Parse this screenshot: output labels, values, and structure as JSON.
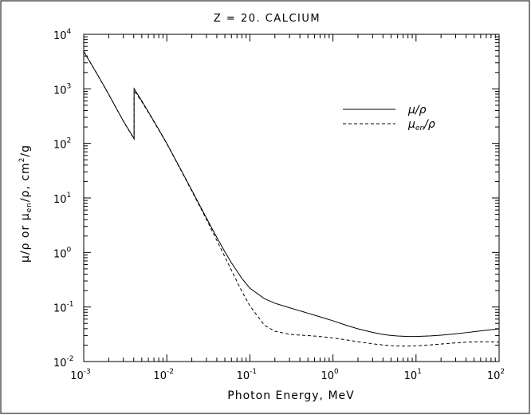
{
  "chart_data": {
    "type": "line",
    "title": "Z = 20.  CALCIUM",
    "xlabel": "Photon Energy, MeV",
    "ylabel": {
      "prefix": "μ/ρ or μ",
      "sub": "en",
      "middle": "/ρ, cm",
      "sup": "2",
      "suffix": "/g"
    },
    "xscale": "log",
    "yscale": "log",
    "xlim": [
      0.001,
      100
    ],
    "ylim": [
      0.01,
      10000
    ],
    "grid": false,
    "legend_position": "top-right",
    "x_ticks": [
      {
        "base": "10",
        "exp": "-3",
        "value": 0.001
      },
      {
        "base": "10",
        "exp": "-2",
        "value": 0.01
      },
      {
        "base": "10",
        "exp": "-1",
        "value": 0.1
      },
      {
        "base": "10",
        "exp": "0",
        "value": 1
      },
      {
        "base": "10",
        "exp": "1",
        "value": 10
      },
      {
        "base": "10",
        "exp": "2",
        "value": 100
      }
    ],
    "y_ticks": [
      {
        "base": "10",
        "exp": "-2",
        "value": 0.01
      },
      {
        "base": "10",
        "exp": "-1",
        "value": 0.1
      },
      {
        "base": "10",
        "exp": "0",
        "value": 1
      },
      {
        "base": "10",
        "exp": "1",
        "value": 10
      },
      {
        "base": "10",
        "exp": "2",
        "value": 100
      },
      {
        "base": "10",
        "exp": "3",
        "value": 1000
      },
      {
        "base": "10",
        "exp": "4",
        "value": 10000
      }
    ],
    "series": [
      {
        "name": "μ/ρ",
        "legend": {
          "main": "μ/ρ",
          "sub": ""
        },
        "style": "solid",
        "color": "#000000",
        "x": [
          0.001,
          0.0015,
          0.002,
          0.003,
          0.004038,
          0.004038,
          0.005,
          0.006,
          0.008,
          0.01,
          0.015,
          0.02,
          0.03,
          0.04,
          0.05,
          0.06,
          0.08,
          0.1,
          0.15,
          0.2,
          0.3,
          0.4,
          0.5,
          0.6,
          0.8,
          1,
          1.5,
          2,
          3,
          4,
          5,
          6,
          8,
          10,
          15,
          20,
          30,
          40,
          50,
          60,
          80,
          100
        ],
        "y": [
          4867,
          1714,
          791.5,
          256.8,
          122.3,
          1007,
          601.7,
          378.3,
          180.4,
          100.3,
          31.66,
          13.85,
          4.29,
          1.885,
          1.033,
          0.6467,
          0.3351,
          0.2212,
          0.1418,
          0.1172,
          0.09694,
          0.0851,
          0.07701,
          0.0709,
          0.06195,
          0.05585,
          0.04539,
          0.03983,
          0.03418,
          0.03148,
          0.03006,
          0.02935,
          0.02879,
          0.0288,
          0.02951,
          0.03044,
          0.03225,
          0.03385,
          0.03524,
          0.03643,
          0.03834,
          0.03986
        ]
      },
      {
        "name": "μen/ρ",
        "legend": {
          "main": "μ",
          "sub": "en",
          "rest": "/ρ"
        },
        "style": "dashed",
        "color": "#000000",
        "x": [
          0.001,
          0.0015,
          0.002,
          0.003,
          0.004038,
          0.004038,
          0.005,
          0.006,
          0.008,
          0.01,
          0.015,
          0.02,
          0.03,
          0.04,
          0.05,
          0.06,
          0.08,
          0.1,
          0.15,
          0.2,
          0.3,
          0.4,
          0.5,
          0.6,
          0.8,
          1,
          1.5,
          2,
          3,
          4,
          5,
          6,
          8,
          10,
          15,
          20,
          30,
          40,
          50,
          60,
          80,
          100
        ],
        "y": [
          4863,
          1710,
          788.4,
          254.8,
          120.6,
          930.4,
          581.9,
          369.2,
          177.1,
          98.41,
          30.87,
          13.38,
          4.037,
          1.667,
          0.8313,
          0.4721,
          0.1946,
          0.1051,
          0.04605,
          0.03599,
          0.03157,
          0.03049,
          0.02988,
          0.02931,
          0.02817,
          0.02708,
          0.02476,
          0.02309,
          0.02114,
          0.02011,
          0.01955,
          0.01928,
          0.01919,
          0.01942,
          0.02018,
          0.02093,
          0.02198,
          0.02263,
          0.02296,
          0.02306,
          0.02294,
          0.02263
        ]
      }
    ]
  }
}
